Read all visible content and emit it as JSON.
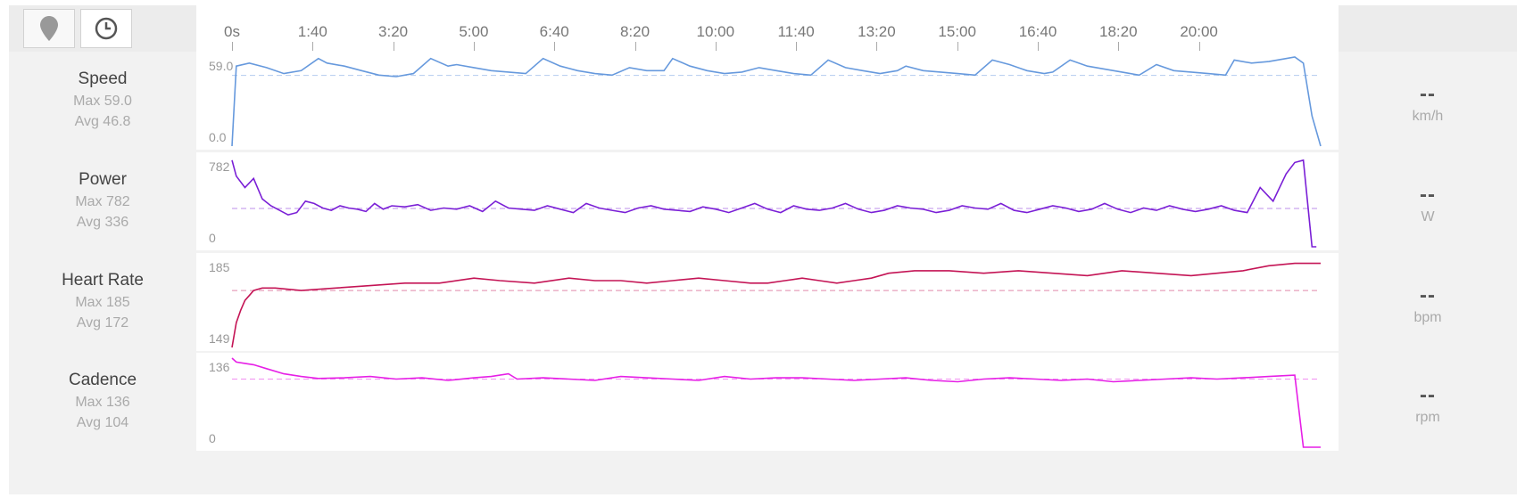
{
  "toolbar": {
    "map_toggle": "map-pin-icon",
    "time_toggle": "clock-icon"
  },
  "x_ticks": [
    "0s",
    "1:40",
    "3:20",
    "5:00",
    "6:40",
    "8:20",
    "10:00",
    "11:40",
    "13:20",
    "15:00",
    "16:40",
    "18:20",
    "20:00"
  ],
  "colors": {
    "speed": "#6699dd",
    "power": "#7a1fd6",
    "heart_rate": "#c41455",
    "cadence": "#e61fe6"
  },
  "metrics": [
    {
      "key": "speed",
      "name": "Speed",
      "max_label": "Max 59.0",
      "avg_label": "Avg 46.8",
      "y_top": "59.0",
      "y_bottom": "0.0",
      "current": "--",
      "unit": "km/h"
    },
    {
      "key": "power",
      "name": "Power",
      "max_label": "Max 782",
      "avg_label": "Avg 336",
      "y_top": "782",
      "y_bottom": "0",
      "current": "--",
      "unit": "W"
    },
    {
      "key": "heart_rate",
      "name": "Heart Rate",
      "max_label": "Max 185",
      "avg_label": "Avg 172",
      "y_top": "185",
      "y_bottom": "149",
      "current": "--",
      "unit": "bpm"
    },
    {
      "key": "cadence",
      "name": "Cadence",
      "max_label": "Max 136",
      "avg_label": "Avg 104",
      "y_top": "136",
      "y_bottom": "0",
      "current": "--",
      "unit": "rpm"
    }
  ],
  "chart_data": [
    {
      "type": "line",
      "title": "Speed",
      "x": [
        0,
        5,
        20,
        40,
        60,
        80,
        100,
        110,
        130,
        150,
        170,
        190,
        210,
        230,
        250,
        260,
        280,
        300,
        320,
        340,
        360,
        380,
        400,
        420,
        440,
        460,
        480,
        500,
        510,
        530,
        550,
        570,
        590,
        610,
        630,
        650,
        670,
        690,
        710,
        730,
        750,
        770,
        780,
        800,
        820,
        840,
        860,
        880,
        900,
        920,
        940,
        950,
        970,
        990,
        1010,
        1030,
        1050,
        1070,
        1090,
        1110,
        1130,
        1150,
        1160,
        1180,
        1200,
        1220,
        1230,
        1240,
        1250,
        1260
      ],
      "y": [
        0,
        53,
        55,
        52,
        48,
        50,
        58,
        55,
        53,
        50,
        47,
        46,
        48,
        58,
        53,
        54,
        52,
        50,
        49,
        48,
        58,
        53,
        50,
        48,
        47,
        52,
        50,
        50,
        58,
        53,
        50,
        48,
        49,
        52,
        50,
        48,
        47,
        57,
        52,
        50,
        48,
        50,
        53,
        50,
        49,
        48,
        47,
        57,
        54,
        50,
        48,
        49,
        57,
        53,
        51,
        49,
        47,
        54,
        50,
        49,
        48,
        47,
        57,
        55,
        56,
        58,
        59,
        55,
        20,
        0
      ],
      "avg": 46.8,
      "ylim": [
        0,
        59.0
      ],
      "unit": "km/h"
    },
    {
      "type": "line",
      "title": "Power",
      "x": [
        0,
        5,
        15,
        25,
        35,
        45,
        55,
        65,
        75,
        85,
        95,
        105,
        115,
        125,
        135,
        145,
        155,
        165,
        175,
        185,
        200,
        215,
        230,
        245,
        260,
        275,
        290,
        305,
        320,
        335,
        350,
        365,
        380,
        395,
        410,
        425,
        440,
        455,
        470,
        485,
        500,
        515,
        530,
        545,
        560,
        575,
        590,
        605,
        620,
        635,
        650,
        665,
        680,
        695,
        710,
        725,
        740,
        755,
        770,
        785,
        800,
        815,
        830,
        845,
        860,
        875,
        890,
        905,
        920,
        935,
        950,
        965,
        980,
        995,
        1010,
        1025,
        1040,
        1055,
        1070,
        1085,
        1100,
        1115,
        1130,
        1145,
        1160,
        1175,
        1190,
        1205,
        1220,
        1230,
        1240,
        1250,
        1255
      ],
      "y": [
        760,
        620,
        520,
        600,
        420,
        360,
        320,
        280,
        300,
        400,
        380,
        340,
        320,
        360,
        340,
        330,
        310,
        380,
        330,
        360,
        350,
        370,
        320,
        340,
        330,
        360,
        310,
        400,
        340,
        330,
        320,
        360,
        330,
        300,
        380,
        340,
        320,
        300,
        340,
        360,
        330,
        320,
        310,
        350,
        330,
        300,
        340,
        380,
        330,
        300,
        360,
        330,
        320,
        340,
        380,
        330,
        300,
        320,
        360,
        340,
        330,
        300,
        320,
        360,
        340,
        330,
        380,
        320,
        300,
        330,
        360,
        340,
        310,
        330,
        380,
        330,
        300,
        340,
        320,
        360,
        330,
        310,
        330,
        360,
        320,
        300,
        520,
        400,
        640,
        740,
        760,
        0,
        0
      ],
      "avg": 336,
      "ylim": [
        0,
        782
      ],
      "unit": "W"
    },
    {
      "type": "line",
      "title": "Heart Rate",
      "x": [
        0,
        5,
        10,
        15,
        20,
        25,
        35,
        50,
        80,
        120,
        160,
        200,
        240,
        280,
        310,
        350,
        390,
        420,
        450,
        480,
        510,
        540,
        570,
        600,
        620,
        640,
        660,
        680,
        700,
        720,
        740,
        760,
        790,
        830,
        870,
        910,
        950,
        990,
        1030,
        1070,
        1110,
        1140,
        1170,
        1200,
        1230,
        1260
      ],
      "y": [
        149,
        159,
        164,
        168,
        170,
        172,
        173,
        173,
        172,
        173,
        174,
        175,
        175,
        177,
        176,
        175,
        177,
        176,
        176,
        175,
        176,
        177,
        176,
        175,
        175,
        176,
        177,
        176,
        175,
        176,
        177,
        179,
        180,
        180,
        179,
        180,
        179,
        178,
        180,
        179,
        178,
        179,
        180,
        182,
        183,
        183
      ],
      "avg": 172,
      "ylim": [
        149,
        185
      ],
      "unit": "bpm"
    },
    {
      "type": "line",
      "title": "Cadence",
      "x": [
        0,
        5,
        15,
        25,
        40,
        60,
        80,
        100,
        130,
        160,
        190,
        220,
        250,
        280,
        300,
        320,
        330,
        360,
        390,
        420,
        450,
        480,
        510,
        540,
        570,
        600,
        630,
        660,
        690,
        720,
        750,
        780,
        810,
        840,
        870,
        900,
        930,
        960,
        990,
        1020,
        1050,
        1080,
        1110,
        1140,
        1170,
        1200,
        1230,
        1240,
        1250,
        1260
      ],
      "y": [
        136,
        130,
        128,
        126,
        120,
        112,
        108,
        105,
        106,
        108,
        104,
        106,
        102,
        106,
        108,
        112,
        104,
        106,
        104,
        102,
        108,
        106,
        104,
        102,
        108,
        104,
        106,
        106,
        104,
        102,
        104,
        106,
        102,
        100,
        104,
        106,
        104,
        102,
        104,
        100,
        102,
        104,
        106,
        104,
        106,
        108,
        110,
        0,
        0,
        0
      ],
      "avg": 104,
      "ylim": [
        0,
        136
      ],
      "unit": "rpm"
    }
  ]
}
